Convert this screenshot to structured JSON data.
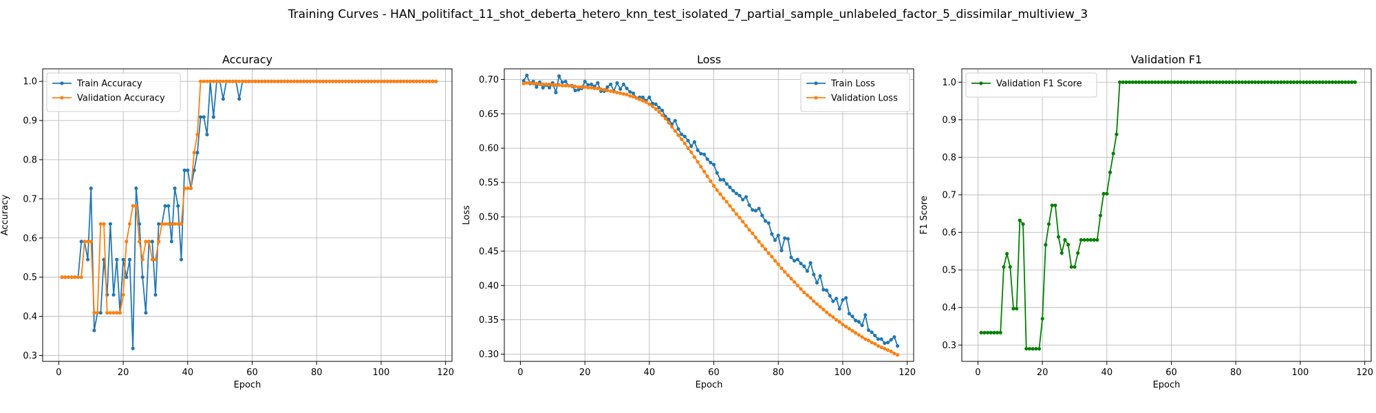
{
  "figure": {
    "title": "Training Curves - HAN_politifact_11_shot_deberta_hetero_knn_test_isolated_7_partial_sample_unlabeled_factor_5_dissimilar_multiview_3"
  },
  "colors": {
    "train": "#1f77b4",
    "validation": "#ff7f0e",
    "f1": "#008000",
    "grid": "#b0b0b0"
  },
  "chart_data": [
    {
      "type": "line",
      "title": "Accuracy",
      "xlabel": "Epoch",
      "ylabel": "Accuracy",
      "xlim": [
        -5,
        122
      ],
      "ylim": [
        0.285,
        1.032
      ],
      "xticks": [
        0,
        20,
        40,
        60,
        80,
        100,
        120
      ],
      "yticks": [
        0.3,
        0.4,
        0.5,
        0.6,
        0.7,
        0.8,
        0.9,
        1.0
      ],
      "ytick_labels": [
        "0.3",
        "0.4",
        "0.5",
        "0.6",
        "0.7",
        "0.8",
        "0.9",
        "1.0"
      ],
      "grid": true,
      "legend": "upper left",
      "series": [
        {
          "name": "Train Accuracy",
          "color": "#1f77b4",
          "x_start": 1,
          "values": [
            0.5,
            0.5,
            0.5,
            0.5,
            0.5,
            0.5,
            0.591,
            0.591,
            0.545,
            0.727,
            0.364,
            0.409,
            0.409,
            0.545,
            0.455,
            0.636,
            0.455,
            0.545,
            0.409,
            0.545,
            0.5,
            0.545,
            0.318,
            0.727,
            0.636,
            0.5,
            0.409,
            0.591,
            0.591,
            0.455,
            0.636,
            0.636,
            0.682,
            0.682,
            0.591,
            0.727,
            0.682,
            0.545,
            0.773,
            0.773,
            0.727,
            0.773,
            0.818,
            0.909,
            0.909,
            0.864,
            1.0,
            0.909,
            1.0,
            1.0,
            0.955,
            1.0,
            1.0,
            1.0,
            1.0,
            0.955,
            1.0,
            1.0,
            1.0,
            1.0,
            1.0,
            1.0,
            1.0,
            1.0,
            1.0,
            1.0,
            1.0,
            1.0,
            1.0,
            1.0,
            1.0,
            1.0,
            1.0,
            1.0,
            1.0,
            1.0,
            1.0,
            1.0,
            1.0,
            1.0,
            1.0,
            1.0,
            1.0,
            1.0,
            1.0,
            1.0,
            1.0,
            1.0,
            1.0,
            1.0,
            1.0,
            1.0,
            1.0,
            1.0,
            1.0,
            1.0,
            1.0,
            1.0,
            1.0,
            1.0,
            1.0,
            1.0,
            1.0,
            1.0,
            1.0,
            1.0,
            1.0,
            1.0,
            1.0,
            1.0,
            1.0,
            1.0,
            1.0,
            1.0,
            1.0,
            1.0,
            1.0
          ]
        },
        {
          "name": "Validation Accuracy",
          "color": "#ff7f0e",
          "x_start": 1,
          "values": [
            0.5,
            0.5,
            0.5,
            0.5,
            0.5,
            0.5,
            0.5,
            0.591,
            0.591,
            0.591,
            0.409,
            0.409,
            0.636,
            0.636,
            0.409,
            0.409,
            0.409,
            0.409,
            0.409,
            0.455,
            0.591,
            0.636,
            0.682,
            0.682,
            0.591,
            0.545,
            0.591,
            0.591,
            0.545,
            0.545,
            0.591,
            0.636,
            0.636,
            0.636,
            0.636,
            0.636,
            0.636,
            0.636,
            0.727,
            0.727,
            0.727,
            0.818,
            0.864,
            1.0,
            1.0,
            1.0,
            1.0,
            1.0,
            1.0,
            1.0,
            1.0,
            1.0,
            1.0,
            1.0,
            1.0,
            1.0,
            1.0,
            1.0,
            1.0,
            1.0,
            1.0,
            1.0,
            1.0,
            1.0,
            1.0,
            1.0,
            1.0,
            1.0,
            1.0,
            1.0,
            1.0,
            1.0,
            1.0,
            1.0,
            1.0,
            1.0,
            1.0,
            1.0,
            1.0,
            1.0,
            1.0,
            1.0,
            1.0,
            1.0,
            1.0,
            1.0,
            1.0,
            1.0,
            1.0,
            1.0,
            1.0,
            1.0,
            1.0,
            1.0,
            1.0,
            1.0,
            1.0,
            1.0,
            1.0,
            1.0,
            1.0,
            1.0,
            1.0,
            1.0,
            1.0,
            1.0,
            1.0,
            1.0,
            1.0,
            1.0,
            1.0,
            1.0,
            1.0,
            1.0,
            1.0,
            1.0,
            1.0
          ]
        }
      ]
    },
    {
      "type": "line",
      "title": "Loss",
      "xlabel": "Epoch",
      "ylabel": "Loss",
      "xlim": [
        -5,
        122
      ],
      "ylim": [
        0.2895,
        0.7155
      ],
      "xticks": [
        0,
        20,
        40,
        60,
        80,
        100,
        120
      ],
      "yticks": [
        0.3,
        0.35,
        0.4,
        0.45,
        0.5,
        0.55,
        0.6,
        0.65,
        0.7
      ],
      "ytick_labels": [
        "0.30",
        "0.35",
        "0.40",
        "0.45",
        "0.50",
        "0.55",
        "0.60",
        "0.65",
        "0.70"
      ],
      "grid": true,
      "legend": "upper right",
      "series": [
        {
          "name": "Train Loss",
          "color": "#1f77b4",
          "x_start": 1,
          "values": [
            0.698,
            0.706,
            0.694,
            0.697,
            0.689,
            0.696,
            0.688,
            0.692,
            0.688,
            0.695,
            0.681,
            0.705,
            0.696,
            0.697,
            0.691,
            0.691,
            0.684,
            0.685,
            0.687,
            0.697,
            0.692,
            0.693,
            0.69,
            0.695,
            0.683,
            0.683,
            0.689,
            0.693,
            0.683,
            0.695,
            0.686,
            0.693,
            0.687,
            0.682,
            0.68,
            0.673,
            0.674,
            0.674,
            0.669,
            0.674,
            0.665,
            0.664,
            0.659,
            0.655,
            0.646,
            0.642,
            0.635,
            0.64,
            0.628,
            0.62,
            0.617,
            0.611,
            0.603,
            0.609,
            0.597,
            0.592,
            0.591,
            0.584,
            0.579,
            0.576,
            0.564,
            0.554,
            0.554,
            0.548,
            0.543,
            0.538,
            0.534,
            0.531,
            0.525,
            0.529,
            0.517,
            0.51,
            0.509,
            0.512,
            0.502,
            0.494,
            0.491,
            0.475,
            0.466,
            0.473,
            0.451,
            0.469,
            0.468,
            0.441,
            0.436,
            0.438,
            0.432,
            0.428,
            0.421,
            0.433,
            0.416,
            0.404,
            0.414,
            0.394,
            0.393,
            0.385,
            0.377,
            0.381,
            0.366,
            0.379,
            0.382,
            0.359,
            0.355,
            0.349,
            0.347,
            0.342,
            0.357,
            0.335,
            0.332,
            0.327,
            0.322,
            0.322,
            0.316,
            0.317,
            0.321,
            0.325,
            0.312
          ]
        },
        {
          "name": "Validation Loss",
          "color": "#ff7f0e",
          "x_start": 1,
          "values": [
            0.694,
            0.695,
            0.695,
            0.694,
            0.694,
            0.693,
            0.693,
            0.693,
            0.693,
            0.692,
            0.692,
            0.692,
            0.691,
            0.691,
            0.691,
            0.69,
            0.69,
            0.689,
            0.689,
            0.689,
            0.688,
            0.688,
            0.687,
            0.687,
            0.686,
            0.685,
            0.684,
            0.683,
            0.682,
            0.681,
            0.68,
            0.679,
            0.678,
            0.676,
            0.675,
            0.673,
            0.671,
            0.669,
            0.667,
            0.664,
            0.661,
            0.657,
            0.653,
            0.648,
            0.643,
            0.637,
            0.631,
            0.625,
            0.619,
            0.613,
            0.607,
            0.6,
            0.594,
            0.587,
            0.58,
            0.573,
            0.566,
            0.559,
            0.552,
            0.545,
            0.539,
            0.533,
            0.527,
            0.522,
            0.516,
            0.51,
            0.504,
            0.499,
            0.493,
            0.487,
            0.481,
            0.476,
            0.47,
            0.464,
            0.458,
            0.453,
            0.447,
            0.442,
            0.436,
            0.431,
            0.425,
            0.42,
            0.415,
            0.41,
            0.405,
            0.4,
            0.395,
            0.39,
            0.386,
            0.382,
            0.377,
            0.373,
            0.369,
            0.365,
            0.361,
            0.357,
            0.354,
            0.35,
            0.347,
            0.343,
            0.34,
            0.337,
            0.334,
            0.331,
            0.328,
            0.325,
            0.322,
            0.32,
            0.317,
            0.315,
            0.312,
            0.31,
            0.308,
            0.306,
            0.304,
            0.301,
            0.299
          ]
        }
      ]
    },
    {
      "type": "line",
      "title": "Validation F1",
      "xlabel": "Epoch",
      "ylabel": "F1 Score",
      "xlim": [
        -5,
        122
      ],
      "ylim": [
        0.2565,
        1.0355
      ],
      "xticks": [
        0,
        20,
        40,
        60,
        80,
        100,
        120
      ],
      "yticks": [
        0.3,
        0.4,
        0.5,
        0.6,
        0.7,
        0.8,
        0.9,
        1.0
      ],
      "ytick_labels": [
        "0.3",
        "0.4",
        "0.5",
        "0.6",
        "0.7",
        "0.8",
        "0.9",
        "1.0"
      ],
      "grid": true,
      "legend": "upper left",
      "series": [
        {
          "name": "Validation F1 Score",
          "color": "#008000",
          "x_start": 1,
          "values": [
            0.333,
            0.333,
            0.333,
            0.333,
            0.333,
            0.333,
            0.333,
            0.508,
            0.543,
            0.508,
            0.397,
            0.397,
            0.632,
            0.622,
            0.29,
            0.29,
            0.29,
            0.29,
            0.29,
            0.37,
            0.567,
            0.622,
            0.672,
            0.672,
            0.588,
            0.545,
            0.58,
            0.567,
            0.508,
            0.508,
            0.545,
            0.58,
            0.58,
            0.58,
            0.58,
            0.58,
            0.58,
            0.645,
            0.703,
            0.703,
            0.76,
            0.81,
            0.861,
            1.0,
            1.0,
            1.0,
            1.0,
            1.0,
            1.0,
            1.0,
            1.0,
            1.0,
            1.0,
            1.0,
            1.0,
            1.0,
            1.0,
            1.0,
            1.0,
            1.0,
            1.0,
            1.0,
            1.0,
            1.0,
            1.0,
            1.0,
            1.0,
            1.0,
            1.0,
            1.0,
            1.0,
            1.0,
            1.0,
            1.0,
            1.0,
            1.0,
            1.0,
            1.0,
            1.0,
            1.0,
            1.0,
            1.0,
            1.0,
            1.0,
            1.0,
            1.0,
            1.0,
            1.0,
            1.0,
            1.0,
            1.0,
            1.0,
            1.0,
            1.0,
            1.0,
            1.0,
            1.0,
            1.0,
            1.0,
            1.0,
            1.0,
            1.0,
            1.0,
            1.0,
            1.0,
            1.0,
            1.0,
            1.0,
            1.0,
            1.0,
            1.0,
            1.0,
            1.0,
            1.0,
            1.0,
            1.0,
            1.0
          ]
        }
      ]
    }
  ]
}
